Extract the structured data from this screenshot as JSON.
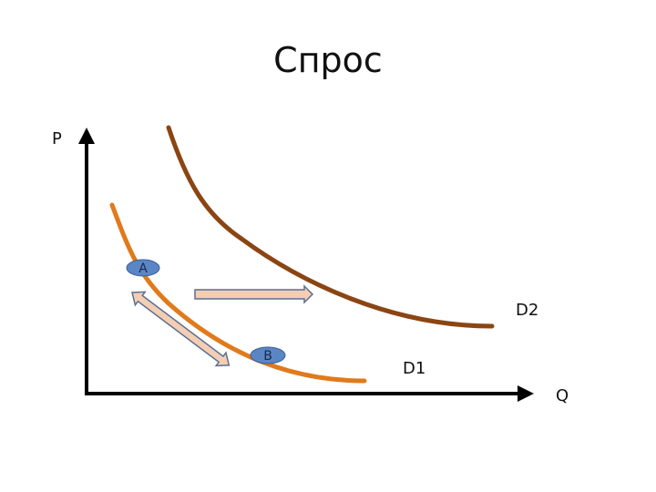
{
  "title": "Спрос",
  "axes": {
    "y_label": "P",
    "x_label": "Q"
  },
  "curves": [
    {
      "id": "d1",
      "label": "D1",
      "color": "#e07a1c"
    },
    {
      "id": "d2",
      "label": "D2",
      "color": "#8b4513"
    }
  ],
  "points": [
    {
      "id": "a",
      "label": "A",
      "color": "#5b86c5"
    },
    {
      "id": "b",
      "label": "B",
      "color": "#5b86c5"
    }
  ],
  "arrows": {
    "fill": "#f4cdb3",
    "stroke": "#5a6f93"
  }
}
